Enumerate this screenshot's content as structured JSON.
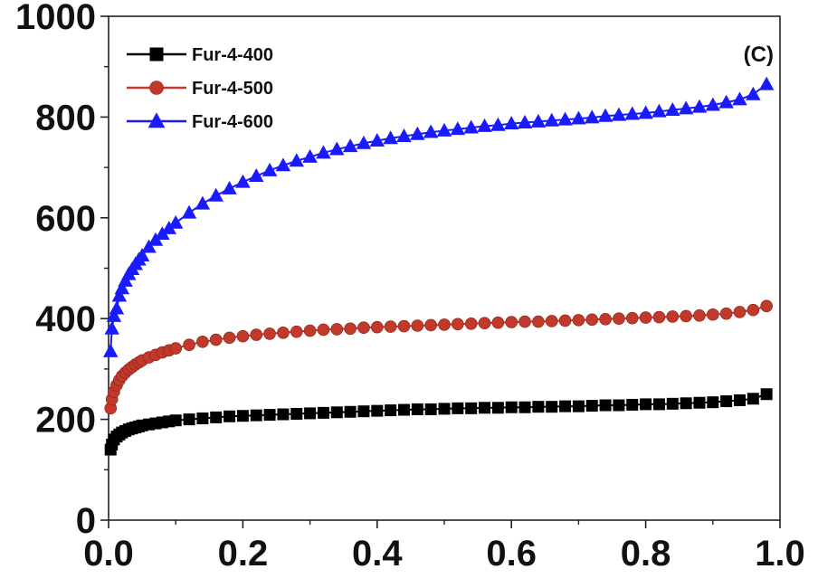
{
  "chart_data": {
    "type": "line",
    "title": "",
    "panel_label": "(C)",
    "xlabel": "",
    "ylabel": "",
    "xlim": [
      0.0,
      1.0
    ],
    "ylim": [
      0,
      1000
    ],
    "x_ticks": [
      0.0,
      0.2,
      0.4,
      0.6,
      0.8,
      1.0
    ],
    "x_tick_labels": [
      "0.0",
      "0.2",
      "0.4",
      "0.6",
      "0.8",
      "1.0"
    ],
    "y_ticks": [
      0,
      200,
      400,
      600,
      800,
      1000
    ],
    "y_tick_labels": [
      "0",
      "200",
      "400",
      "600",
      "800",
      "1000"
    ],
    "grid": false,
    "legend": {
      "position": "top-left"
    },
    "series": [
      {
        "name": "Fur-4-400",
        "color": "#000000",
        "marker": "square",
        "x": [
          0.003,
          0.005,
          0.008,
          0.012,
          0.016,
          0.02,
          0.025,
          0.03,
          0.035,
          0.04,
          0.045,
          0.05,
          0.06,
          0.07,
          0.08,
          0.09,
          0.1,
          0.12,
          0.14,
          0.16,
          0.18,
          0.2,
          0.22,
          0.24,
          0.26,
          0.28,
          0.3,
          0.32,
          0.34,
          0.36,
          0.38,
          0.4,
          0.42,
          0.44,
          0.46,
          0.48,
          0.5,
          0.52,
          0.54,
          0.56,
          0.58,
          0.6,
          0.62,
          0.64,
          0.66,
          0.68,
          0.7,
          0.72,
          0.74,
          0.76,
          0.78,
          0.8,
          0.82,
          0.84,
          0.86,
          0.88,
          0.9,
          0.92,
          0.94,
          0.96,
          0.98
        ],
        "y": [
          140,
          150,
          160,
          166,
          170,
          174,
          177,
          180,
          182,
          184,
          186,
          188,
          190,
          192,
          194,
          196,
          198,
          200,
          202,
          204,
          206,
          207,
          208,
          209,
          210,
          211,
          212,
          213,
          214,
          215,
          216,
          217,
          218,
          219,
          220,
          220,
          221,
          222,
          222,
          223,
          223,
          224,
          224,
          225,
          225,
          226,
          226,
          227,
          228,
          228,
          229,
          230,
          230,
          231,
          232,
          233,
          234,
          236,
          238,
          241,
          250
        ]
      },
      {
        "name": "Fur-4-500",
        "color": "#c0392b",
        "marker": "circle",
        "x": [
          0.003,
          0.005,
          0.008,
          0.012,
          0.016,
          0.02,
          0.025,
          0.03,
          0.035,
          0.04,
          0.045,
          0.05,
          0.06,
          0.07,
          0.08,
          0.09,
          0.1,
          0.12,
          0.14,
          0.16,
          0.18,
          0.2,
          0.22,
          0.24,
          0.26,
          0.28,
          0.3,
          0.32,
          0.34,
          0.36,
          0.38,
          0.4,
          0.42,
          0.44,
          0.46,
          0.48,
          0.5,
          0.52,
          0.54,
          0.56,
          0.58,
          0.6,
          0.62,
          0.64,
          0.66,
          0.68,
          0.7,
          0.72,
          0.74,
          0.76,
          0.78,
          0.8,
          0.82,
          0.84,
          0.86,
          0.88,
          0.9,
          0.92,
          0.94,
          0.96,
          0.98
        ],
        "y": [
          222,
          240,
          255,
          268,
          278,
          286,
          293,
          299,
          304,
          309,
          313,
          317,
          323,
          328,
          333,
          337,
          341,
          348,
          354,
          358,
          362,
          365,
          368,
          370,
          372,
          374,
          376,
          378,
          379,
          380,
          382,
          383,
          384,
          385,
          386,
          387,
          388,
          389,
          390,
          391,
          392,
          393,
          394,
          394,
          395,
          396,
          397,
          398,
          399,
          400,
          401,
          402,
          403,
          404,
          405,
          406,
          408,
          410,
          413,
          417,
          425
        ]
      },
      {
        "name": "Fur-4-600",
        "color": "#1a1aff",
        "marker": "triangle",
        "x": [
          0.003,
          0.005,
          0.008,
          0.012,
          0.016,
          0.02,
          0.025,
          0.03,
          0.035,
          0.04,
          0.045,
          0.05,
          0.06,
          0.07,
          0.08,
          0.09,
          0.1,
          0.12,
          0.14,
          0.16,
          0.18,
          0.2,
          0.22,
          0.24,
          0.26,
          0.28,
          0.3,
          0.32,
          0.34,
          0.36,
          0.38,
          0.4,
          0.42,
          0.44,
          0.46,
          0.48,
          0.5,
          0.52,
          0.54,
          0.56,
          0.58,
          0.6,
          0.62,
          0.64,
          0.66,
          0.68,
          0.7,
          0.72,
          0.74,
          0.76,
          0.78,
          0.8,
          0.82,
          0.84,
          0.86,
          0.88,
          0.9,
          0.92,
          0.94,
          0.96,
          0.98
        ],
        "y": [
          335,
          380,
          405,
          420,
          445,
          460,
          475,
          488,
          498,
          508,
          517,
          525,
          542,
          556,
          568,
          579,
          590,
          610,
          628,
          644,
          658,
          671,
          683,
          694,
          704,
          713,
          721,
          729,
          736,
          742,
          748,
          753,
          758,
          762,
          766,
          770,
          773,
          776,
          779,
          782,
          784,
          787,
          789,
          791,
          793,
          795,
          797,
          799,
          802,
          804,
          806,
          808,
          811,
          814,
          817,
          820,
          824,
          829,
          835,
          845,
          865
        ]
      }
    ]
  }
}
